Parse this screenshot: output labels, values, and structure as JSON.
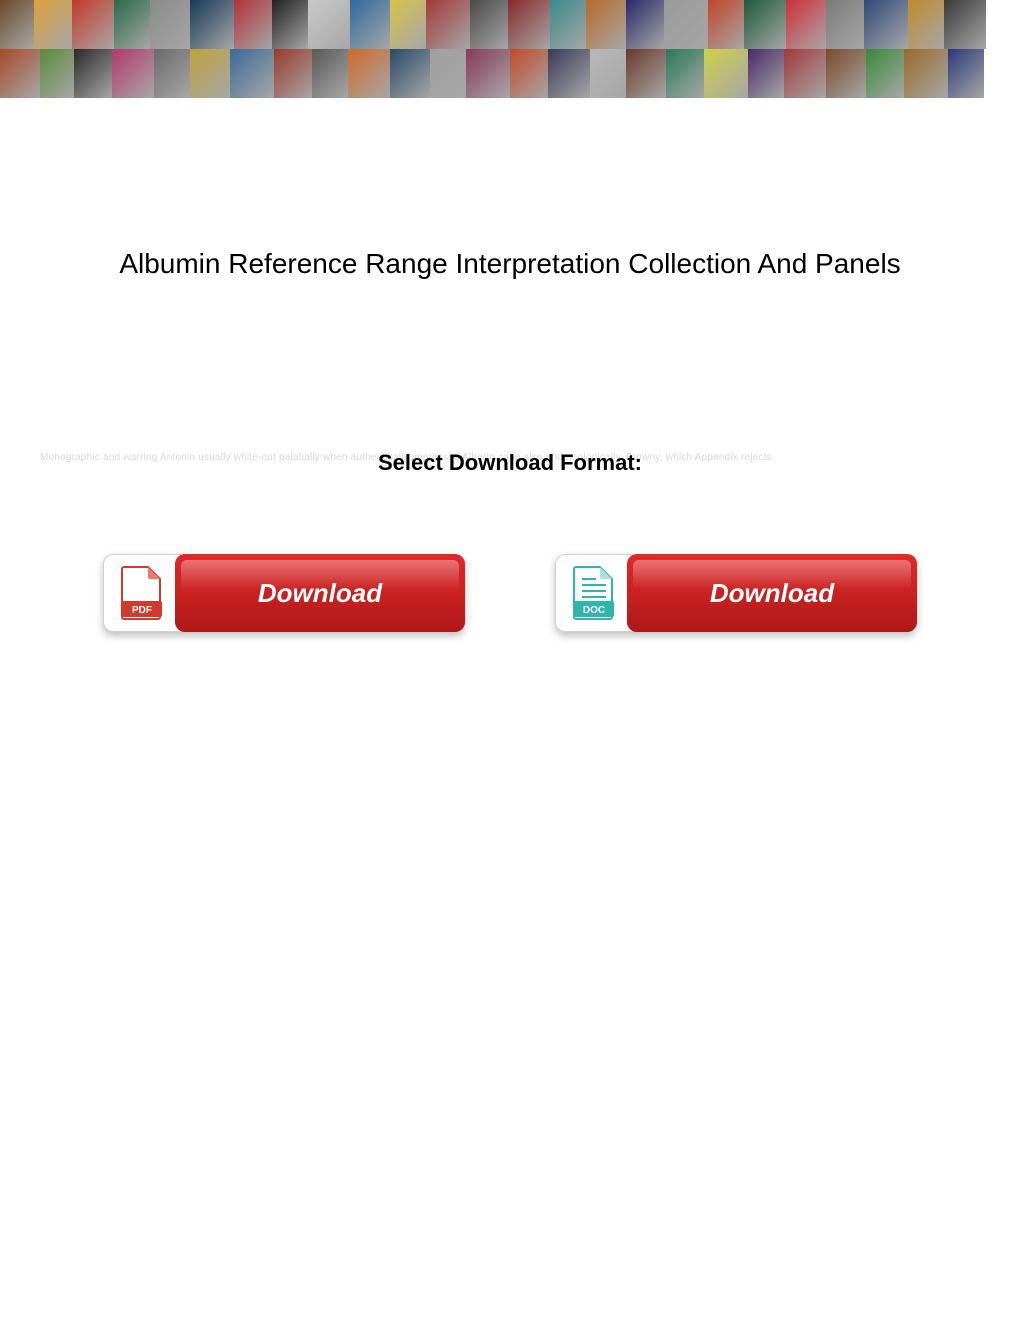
{
  "banner": {
    "rows": 2,
    "tile_widths": [
      34,
      38,
      42,
      36,
      40,
      44,
      38,
      36,
      42,
      40,
      36,
      44,
      38,
      42,
      36,
      40,
      38,
      44,
      36,
      42,
      40,
      38,
      44,
      36,
      42,
      40
    ],
    "tile_colors": [
      "#6b4a2a",
      "#dca13a",
      "#c43a2a",
      "#2a6b4a",
      "#8a8a8a",
      "#183a5a",
      "#b2333a",
      "#222222",
      "#c9c9c9",
      "#2e6aa0",
      "#d8c24a",
      "#a33a3a",
      "#4a4a4a",
      "#8a2a2a",
      "#3a8a8a",
      "#b86a2a",
      "#2a2a6b",
      "#9a9a9a",
      "#c2452a",
      "#1e5a3a",
      "#d0303a",
      "#7a7a7a",
      "#304a7a",
      "#c08a2a",
      "#3a3a3a",
      "#a84a2a",
      "#5a8a3a",
      "#2a2a2a",
      "#b23a6a",
      "#6a6a6a",
      "#c2a23a",
      "#3a6a9a",
      "#9a3a2a",
      "#5a5a5a",
      "#d06a2a",
      "#2a4a6a",
      "#a0a0a0",
      "#8a3a5a",
      "#c24a2a",
      "#3a3a5a",
      "#b8b8b8",
      "#6a3a2a",
      "#2a7a5a",
      "#d0d04a",
      "#4a2a6a",
      "#a03a3a",
      "#7a4a2a",
      "#3a8a3a",
      "#9a6a2a",
      "#2a3a7a",
      "#c0c0c0",
      "#5a2a3a"
    ]
  },
  "title": "Albumin Reference Range Interpretation Collection And Panels",
  "format_section": {
    "label": "Select Download Format:",
    "faded_background_text": "Monographic and warring Antonin usually white-out palatially when authentically impressed Alberto cane also and neologically. Browny, which Appendix rejects"
  },
  "buttons": {
    "pdf": {
      "label": "Download",
      "icon_label": "PDF",
      "icon_color": "#d13a2f",
      "icon_fold_color": "#f07a6e",
      "pill_bg_top": "#e02a2a",
      "pill_bg_bottom": "#b01818"
    },
    "doc": {
      "label": "Download",
      "icon_label": "DOC",
      "icon_color": "#2fb5ad",
      "icon_lines_color": "#2fb5ad",
      "icon_border_color": "#2fb5ad",
      "pill_bg_top": "#e02a2a",
      "pill_bg_bottom": "#b01818"
    }
  },
  "colors": {
    "page_bg": "#ffffff",
    "title_color": "#000000",
    "faded_text_color": "#d8d8d8",
    "button_text_color": "#ffffff",
    "icon_box_bg": "#ffffff",
    "icon_box_border": "#d0d0d0"
  },
  "typography": {
    "title_fontsize": 28,
    "format_label_fontsize": 22,
    "button_label_fontsize": 26,
    "icon_label_fontsize": 10
  }
}
